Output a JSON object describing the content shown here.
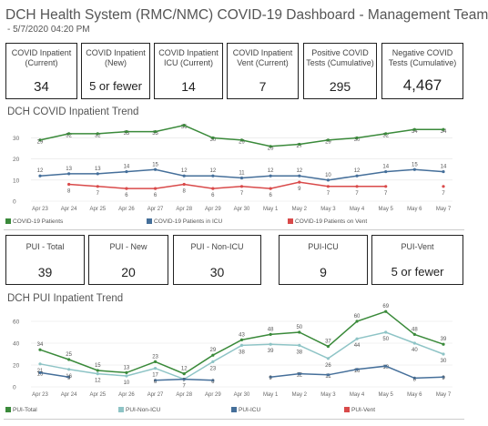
{
  "header": {
    "title": "DCH Health System (RMC/NMC) COVID-19 Dashboard - Management Team",
    "subtitle": "- 5/7/2020 04:20 PM"
  },
  "kpi_row1": [
    {
      "label": "COVID Inpatient (Current)",
      "value": "34"
    },
    {
      "label": "COVID Inpatient (New)",
      "value": "5 or fewer"
    },
    {
      "label": "COVID Inpatient ICU (Current)",
      "value": "14"
    },
    {
      "label": "COVID Inpatient Vent (Current)",
      "value": "7"
    },
    {
      "label": "Positive COVID Tests (Cumulative)",
      "value": "295"
    },
    {
      "label": "Negative COVID Tests (Cumulative)",
      "value": "4,467"
    }
  ],
  "kpi_row2": [
    {
      "label": "PUI - Total",
      "value": "39"
    },
    {
      "label": "PUI - New",
      "value": "20"
    },
    {
      "label": "PUI - Non-ICU",
      "value": "30"
    },
    {
      "label": "PUI-ICU",
      "value": "9"
    },
    {
      "label": "PUI-Vent",
      "value": "5 or fewer"
    }
  ],
  "colors": {
    "green": "#3a8a3a",
    "teal": "#8ec4c6",
    "blue": "#456f9a",
    "red": "#d94a4a"
  },
  "chart_data": [
    {
      "type": "line",
      "title": "DCH COVID Inpatient Trend",
      "categories": [
        "Apr 23",
        "Apr 24",
        "Apr 25",
        "Apr 26",
        "Apr 27",
        "Apr 28",
        "Apr 29",
        "Apr 30",
        "May 1",
        "May 2",
        "May 3",
        "May 4",
        "May 5",
        "May 6",
        "May 7"
      ],
      "ylim": [
        0,
        38
      ],
      "yticks": [
        0,
        10,
        20,
        30
      ],
      "grid": true,
      "legend": "bottom",
      "series": [
        {
          "name": "COVID-19 Patients",
          "color": "#3a8a3a",
          "values": [
            29,
            32,
            32,
            33,
            33,
            36,
            30,
            29,
            26,
            27,
            29,
            30,
            32,
            34,
            34
          ]
        },
        {
          "name": "COVID-19 Patients in ICU",
          "color": "#456f9a",
          "values": [
            12,
            13,
            13,
            14,
            15,
            12,
            12,
            11,
            12,
            12,
            10,
            12,
            14,
            15,
            14
          ]
        },
        {
          "name": "COVID-19 Patients on Vent",
          "color": "#d94a4a",
          "values": [
            null,
            8,
            7,
            6,
            6,
            8,
            6,
            7,
            6,
            9,
            7,
            7,
            7,
            null,
            null
          ]
        }
      ],
      "extra_points": [
        {
          "series": "COVID-19 Patients on Vent",
          "category": "May 7",
          "value": 7
        }
      ]
    },
    {
      "type": "line",
      "title": "DCH PUI Inpatient Trend",
      "categories": [
        "Apr 23",
        "Apr 24",
        "Apr 25",
        "Apr 26",
        "Apr 27",
        "Apr 28",
        "Apr 29",
        "Apr 30",
        "May 1",
        "May 2",
        "May 3",
        "May 4",
        "May 5",
        "May 6",
        "May 7"
      ],
      "ylim": [
        0,
        70
      ],
      "yticks": [
        0,
        20,
        40,
        60
      ],
      "grid": true,
      "legend": "bottom",
      "series": [
        {
          "name": "PUI-Total",
          "color": "#3a8a3a",
          "values": [
            34,
            25,
            15,
            13,
            23,
            12,
            29,
            43,
            48,
            50,
            37,
            60,
            69,
            48,
            39
          ]
        },
        {
          "name": "PUI-Non-ICU",
          "color": "#8ec4c6",
          "values": [
            21,
            16,
            12,
            10,
            17,
            7,
            23,
            38,
            39,
            38,
            26,
            44,
            50,
            40,
            30
          ]
        },
        {
          "name": "PUI-ICU",
          "color": "#456f9a",
          "values": [
            13,
            9,
            null,
            null,
            6,
            7,
            6,
            null,
            9,
            12,
            11,
            16,
            19,
            8,
            9
          ]
        },
        {
          "name": "PUI-Vent",
          "color": "#d94a4a",
          "values": [
            null,
            null,
            null,
            null,
            null,
            null,
            null,
            null,
            null,
            null,
            null,
            null,
            null,
            null,
            null
          ]
        }
      ]
    }
  ]
}
